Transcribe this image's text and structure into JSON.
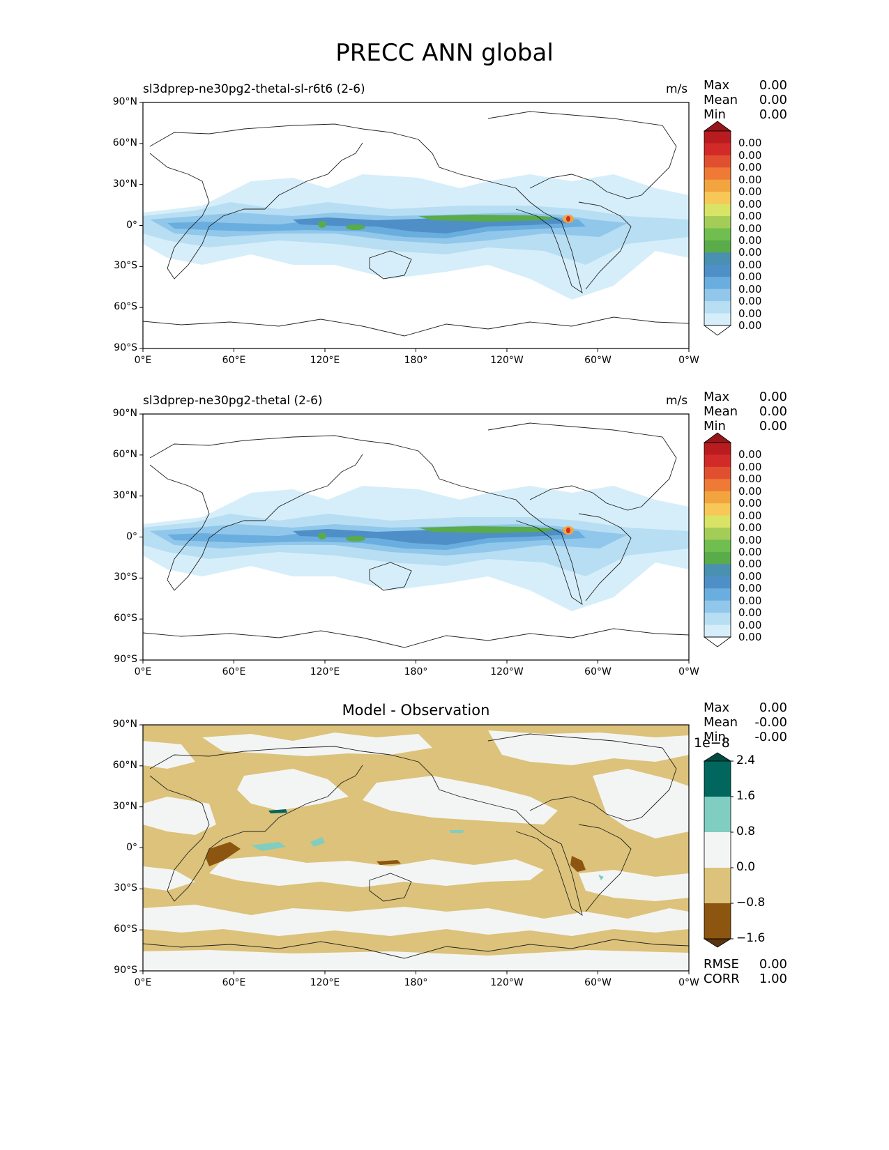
{
  "title": "PRECC ANN global",
  "x_ticks": [
    "0°E",
    "60°E",
    "120°E",
    "180°",
    "120°W",
    "60°W",
    "0°W"
  ],
  "y_ticks": [
    "90°N",
    "60°N",
    "30°N",
    "0°",
    "30°S",
    "60°S",
    "90°S"
  ],
  "panels": [
    {
      "title_left": "sl3dprep-ne30pg2-thetal-sl-r6t6 (2-6)",
      "units": "m/s",
      "stats": [
        {
          "label": "Max",
          "value": "0.00"
        },
        {
          "label": "Mean",
          "value": "0.00"
        },
        {
          "label": "Min",
          "value": "0.00"
        }
      ],
      "colorbar_labels": [
        "0.00",
        "0.00",
        "0.00",
        "0.00",
        "0.00",
        "0.00",
        "0.00",
        "0.00",
        "0.00",
        "0.00",
        "0.00",
        "0.00",
        "0.00",
        "0.00",
        "0.00",
        "0.00"
      ],
      "colorbar_colors": [
        "#ffffff",
        "#d6eef9",
        "#b7def3",
        "#91c7ea",
        "#6aaedf",
        "#4e8fc7",
        "#4a90b0",
        "#5aab4a",
        "#6fbe4f",
        "#a4cd58",
        "#d9e365",
        "#f7c857",
        "#f2a43f",
        "#ee7a35",
        "#e05030",
        "#d22a28",
        "#b81c1f",
        "#96161a"
      ]
    },
    {
      "title_left": "sl3dprep-ne30pg2-thetal (2-6)",
      "units": "m/s",
      "stats": [
        {
          "label": "Max",
          "value": "0.00"
        },
        {
          "label": "Mean",
          "value": "0.00"
        },
        {
          "label": "Min",
          "value": "0.00"
        }
      ],
      "colorbar_labels": [
        "0.00",
        "0.00",
        "0.00",
        "0.00",
        "0.00",
        "0.00",
        "0.00",
        "0.00",
        "0.00",
        "0.00",
        "0.00",
        "0.00",
        "0.00",
        "0.00",
        "0.00",
        "0.00"
      ],
      "colorbar_colors": [
        "#ffffff",
        "#d6eef9",
        "#b7def3",
        "#91c7ea",
        "#6aaedf",
        "#4e8fc7",
        "#4a90b0",
        "#5aab4a",
        "#6fbe4f",
        "#a4cd58",
        "#d9e365",
        "#f7c857",
        "#f2a43f",
        "#ee7a35",
        "#e05030",
        "#d22a28",
        "#b81c1f",
        "#96161a"
      ]
    },
    {
      "title_center": "Model - Observation",
      "stats": [
        {
          "label": "Max",
          "value": "0.00"
        },
        {
          "label": "Mean",
          "value": "-0.00"
        },
        {
          "label": "Min",
          "value": "-0.00"
        }
      ],
      "colorbar_exponent": "1e−8",
      "colorbar_labels": [
        "2.4",
        "1.6",
        "0.8",
        "0.0",
        "−0.8",
        "−1.6"
      ],
      "colorbar_colors": [
        "#5a3410",
        "#8c5510",
        "#dcc27a",
        "#f3f5f4",
        "#80cdc1",
        "#01665e",
        "#004c42"
      ],
      "metrics": [
        {
          "label": "RMSE",
          "value": "0.00"
        },
        {
          "label": "CORR",
          "value": "1.00"
        }
      ]
    }
  ]
}
